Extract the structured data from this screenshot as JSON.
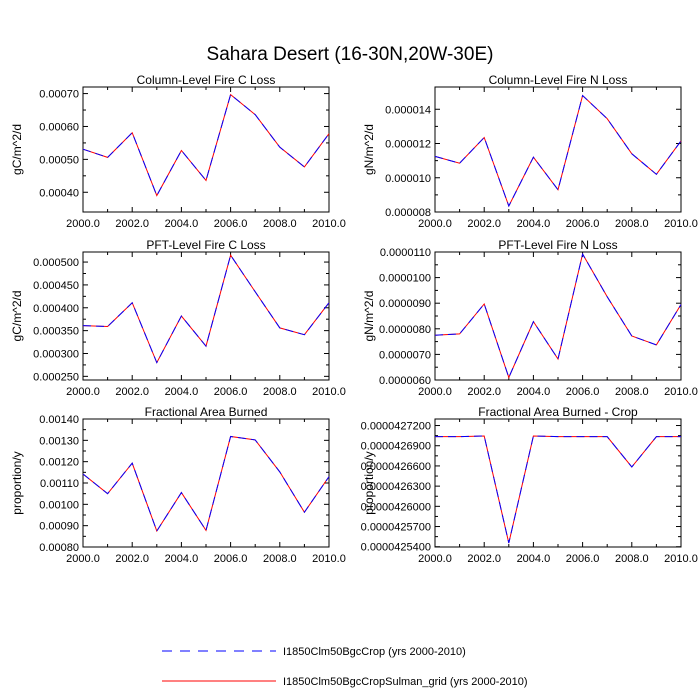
{
  "figure": {
    "title": "Sahara Desert (16-30N,20W-30E)"
  },
  "legend": {
    "items": [
      {
        "label": "I1850Clm50BgcCrop (yrs 2000-2010)",
        "color": "#0000ff",
        "dash": true
      },
      {
        "label": "I1850Clm50BgcCropSulman_grid (yrs 2000-2010)",
        "color": "#ff0000",
        "dash": false
      }
    ]
  },
  "chart_data": [
    {
      "type": "line",
      "title": "Column-Level Fire C Loss",
      "ylabel": "gC/m^2/d",
      "x": [
        2000,
        2001,
        2002,
        2003,
        2004,
        2005,
        2006,
        2007,
        2008,
        2009,
        2010
      ],
      "xlim": [
        2000,
        2010
      ],
      "xticks": [
        "2000.0",
        "2002.0",
        "2004.0",
        "2006.0",
        "2008.0",
        "2010.0"
      ],
      "ylim": [
        0.00034,
        0.00072
      ],
      "yticks": [
        "0.00040",
        "0.00050",
        "0.00060",
        "0.00070"
      ],
      "yticks_values": [
        0.0004,
        0.0005,
        0.0006,
        0.0007
      ],
      "series": [
        {
          "values": [
            0.000531,
            0.000506,
            0.000581,
            0.00039,
            0.000527,
            0.000436,
            0.000697,
            0.000636,
            0.000537,
            0.000477,
            0.000578
          ]
        },
        {
          "values": [
            0.000531,
            0.000506,
            0.000581,
            0.00039,
            0.000527,
            0.000436,
            0.000697,
            0.000636,
            0.000537,
            0.000477,
            0.000578
          ]
        }
      ]
    },
    {
      "type": "line",
      "title": "Column-Level Fire N Loss",
      "ylabel": "gN/m^2/d",
      "x": [
        2000,
        2001,
        2002,
        2003,
        2004,
        2005,
        2006,
        2007,
        2008,
        2009,
        2010
      ],
      "xlim": [
        2000,
        2010
      ],
      "xticks": [
        "2000.0",
        "2002.0",
        "2004.0",
        "2006.0",
        "2008.0",
        "2010.0"
      ],
      "ylim": [
        8e-06,
        1.53e-05
      ],
      "yticks": [
        "0.000008",
        "0.000010",
        "0.000012",
        "0.000014"
      ],
      "yticks_values": [
        8e-06,
        1e-05,
        1.2e-05,
        1.4e-05
      ],
      "series": [
        {
          "values": [
            1.125e-05,
            1.085e-05,
            1.235e-05,
            8.35e-06,
            1.12e-05,
            9.3e-06,
            1.48e-05,
            1.345e-05,
            1.14e-05,
            1.02e-05,
            1.215e-05
          ]
        },
        {
          "values": [
            1.125e-05,
            1.085e-05,
            1.235e-05,
            8.35e-06,
            1.12e-05,
            9.3e-06,
            1.48e-05,
            1.345e-05,
            1.14e-05,
            1.02e-05,
            1.215e-05
          ]
        }
      ]
    },
    {
      "type": "line",
      "title": "PFT-Level Fire C Loss",
      "ylabel": "gC/m^2/d",
      "x": [
        2000,
        2001,
        2002,
        2003,
        2004,
        2005,
        2006,
        2007,
        2008,
        2009,
        2010
      ],
      "xlim": [
        2000,
        2010
      ],
      "xticks": [
        "2000.0",
        "2002.0",
        "2004.0",
        "2006.0",
        "2008.0",
        "2010.0"
      ],
      "ylim": [
        0.000242,
        0.000522
      ],
      "yticks": [
        "0.000250",
        "0.000300",
        "0.000350",
        "0.000400",
        "0.000450",
        "0.000500"
      ],
      "yticks_values": [
        0.00025,
        0.0003,
        0.00035,
        0.0004,
        0.00045,
        0.0005
      ],
      "series": [
        {
          "values": [
            0.000361,
            0.000359,
            0.000411,
            0.00028,
            0.000382,
            0.000316,
            0.000515,
            0.000435,
            0.000356,
            0.000341,
            0.000411
          ]
        },
        {
          "values": [
            0.000361,
            0.000359,
            0.000411,
            0.00028,
            0.000382,
            0.000316,
            0.000515,
            0.000435,
            0.000356,
            0.000341,
            0.000411
          ]
        }
      ]
    },
    {
      "type": "line",
      "title": "PFT-Level Fire N Loss",
      "ylabel": "gN/m^2/d",
      "x": [
        2000,
        2001,
        2002,
        2003,
        2004,
        2005,
        2006,
        2007,
        2008,
        2009,
        2010
      ],
      "xlim": [
        2000,
        2010
      ],
      "xticks": [
        "2000.0",
        "2002.0",
        "2004.0",
        "2006.0",
        "2008.0",
        "2010.0"
      ],
      "ylim": [
        6e-06,
        1.1e-05
      ],
      "yticks": [
        "0.0000060",
        "0.0000070",
        "0.0000080",
        "0.0000090",
        "0.0000100",
        "0.0000110"
      ],
      "yticks_values": [
        6e-06,
        7e-06,
        8e-06,
        9e-06,
        1e-05,
        1.1e-05
      ],
      "series": [
        {
          "values": [
            7.75e-06,
            7.8e-06,
            8.97e-06,
            6.1e-06,
            8.28e-06,
            6.82e-06,
            1.092e-05,
            9.25e-06,
            7.72e-06,
            7.37e-06,
            8.95e-06
          ]
        },
        {
          "values": [
            7.75e-06,
            7.8e-06,
            8.97e-06,
            6.1e-06,
            8.28e-06,
            6.82e-06,
            1.092e-05,
            9.25e-06,
            7.72e-06,
            7.37e-06,
            8.95e-06
          ]
        }
      ]
    },
    {
      "type": "line",
      "title": "Fractional Area Burned",
      "ylabel": "proportion/y",
      "x": [
        2000,
        2001,
        2002,
        2003,
        2004,
        2005,
        2006,
        2007,
        2008,
        2009,
        2010
      ],
      "xlim": [
        2000,
        2010
      ],
      "xticks": [
        "2000.0",
        "2002.0",
        "2004.0",
        "2006.0",
        "2008.0",
        "2010.0"
      ],
      "ylim": [
        0.0008,
        0.0014
      ],
      "yticks": [
        "0.00080",
        "0.00090",
        "0.00100",
        "0.00110",
        "0.00120",
        "0.00130",
        "0.00140"
      ],
      "yticks_values": [
        0.0008,
        0.0009,
        0.001,
        0.0011,
        0.0012,
        0.0013,
        0.0014
      ],
      "series": [
        {
          "values": [
            0.001142,
            0.00105,
            0.001193,
            0.000875,
            0.001055,
            0.000878,
            0.001318,
            0.001302,
            0.001152,
            0.000963,
            0.00113
          ]
        },
        {
          "values": [
            0.001142,
            0.00105,
            0.001193,
            0.000875,
            0.001055,
            0.000878,
            0.001318,
            0.001302,
            0.001152,
            0.000963,
            0.00113
          ]
        }
      ]
    },
    {
      "type": "line",
      "title": "Fractional Area Burned - Crop",
      "ylabel": "proportion/y",
      "x": [
        2000,
        2001,
        2002,
        2003,
        2004,
        2005,
        2006,
        2007,
        2008,
        2009,
        2010
      ],
      "xlim": [
        2000,
        2010
      ],
      "xticks": [
        "2000.0",
        "2002.0",
        "2004.0",
        "2006.0",
        "2008.0",
        "2010.0"
      ],
      "ylim": [
        4.25396e-05,
        4.27297e-05
      ],
      "yticks": [
        "0.0000425400",
        "0.0000425700",
        "0.0000426000",
        "0.0000426300",
        "0.0000426600",
        "0.0000426900",
        "0.0000427200"
      ],
      "yticks_values": [
        4.254e-05,
        4.257e-05,
        4.26e-05,
        4.263e-05,
        4.266e-05,
        4.269e-05,
        4.272e-05
      ],
      "series": [
        {
          "values": [
            4.27035e-05,
            4.27035e-05,
            4.27045e-05,
            4.25455e-05,
            4.27045e-05,
            4.27035e-05,
            4.27035e-05,
            4.27035e-05,
            4.26585e-05,
            4.27035e-05,
            4.27035e-05
          ]
        },
        {
          "values": [
            4.27035e-05,
            4.27035e-05,
            4.27045e-05,
            4.25455e-05,
            4.27045e-05,
            4.27035e-05,
            4.27035e-05,
            4.27035e-05,
            4.26585e-05,
            4.27035e-05,
            4.27035e-05
          ]
        }
      ]
    }
  ]
}
